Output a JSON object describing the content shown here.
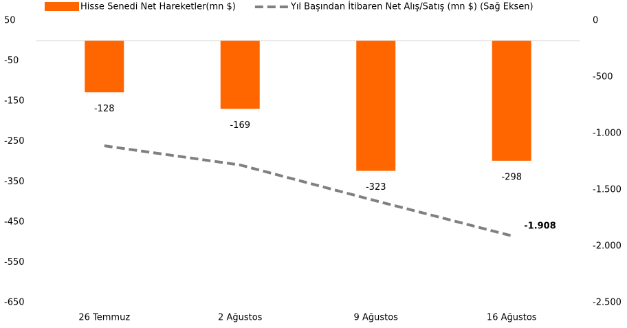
{
  "chart_data": {
    "type": "bar-line",
    "categories": [
      "26 Temmuz",
      "2 Ağustos",
      "9 Ağustos",
      "16 Ağustos"
    ],
    "series": [
      {
        "name": "Hisse Senedi Net Hareketler(mn $)",
        "type": "bar",
        "color": "#ff6600",
        "values": [
          -128,
          -169,
          -323,
          -298
        ]
      },
      {
        "name": "Yıl Başından İtibaren Net Alış/Satış (mn $) (Sağ Eksen)",
        "type": "line",
        "axis": "y2",
        "color": "#808080",
        "dashed": true,
        "values": [
          -1110,
          -1280,
          -1598,
          -1908
        ],
        "value_labels": [
          null,
          null,
          null,
          "-1.908"
        ]
      }
    ],
    "ylim": [
      50,
      -650
    ],
    "yticks": [
      50,
      -50,
      -150,
      -250,
      -350,
      -450,
      -550,
      -650
    ],
    "y2lim": [
      0,
      -2500
    ],
    "y2ticks": [
      0,
      -500,
      {
        "value": -1000,
        "label": "-1.000"
      },
      {
        "value": -1500,
        "label": "-1.500"
      },
      {
        "value": -2000,
        "label": "-2.000"
      },
      {
        "value": -2500,
        "label": "-2.500"
      }
    ],
    "legend": "top"
  }
}
